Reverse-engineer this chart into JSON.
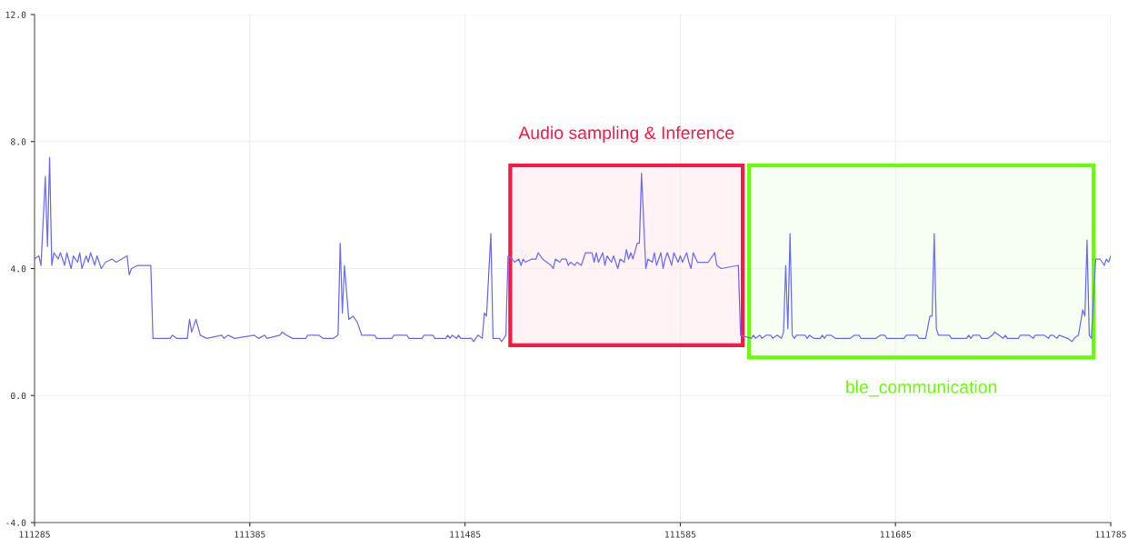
{
  "chart_data": {
    "type": "line",
    "x": [
      111285,
      111287,
      111288,
      111290,
      111291,
      111292,
      111293,
      111294,
      111296,
      111297,
      111299,
      111300,
      111302,
      111303,
      111305,
      111306,
      111307,
      111309,
      111310,
      111311,
      111313,
      111314,
      111316,
      111318,
      111321,
      111323,
      111328,
      111329,
      111330,
      111333,
      111339,
      111340,
      111348,
      111349,
      111351,
      111356,
      111357,
      111358,
      111360,
      111362,
      111365,
      111372,
      111373,
      111375,
      111378,
      111387,
      111389,
      111392,
      111393,
      111399,
      111400,
      111402,
      111405,
      111411,
      111412,
      111417,
      111419,
      111424,
      111426,
      111427,
      111428,
      111429,
      111431,
      111433,
      111435,
      111437,
      111443,
      111444,
      111451,
      111452,
      111458,
      111459,
      111465,
      111466,
      111470,
      111471,
      111476,
      111477,
      111478,
      111479,
      111481,
      111482,
      111483,
      111488,
      111489,
      111491,
      111493,
      111494,
      111495,
      111497,
      111498,
      111501,
      111502,
      111504,
      111505,
      111507,
      111508,
      111510,
      111511,
      111512,
      111513,
      111516,
      111518,
      111519,
      111521,
      111523,
      111525,
      111526,
      111527,
      111529,
      111530,
      111532,
      111533,
      111534,
      111536,
      111537,
      111539,
      111541,
      111544,
      111545,
      111546,
      111547,
      111549,
      111550,
      111551,
      111553,
      111554,
      111556,
      111557,
      111559,
      111560,
      111561,
      111562,
      111563,
      111565,
      111566,
      111567,
      111569,
      111570,
      111572,
      111573,
      111574,
      111576,
      111577,
      111578,
      111579,
      111581,
      111582,
      111584,
      111585,
      111586,
      111588,
      111589,
      111590,
      111591,
      111593,
      111598,
      111599,
      111601,
      111602,
      111604,
      111612,
      111613,
      111618,
      111619,
      111620,
      111622,
      111623,
      111625,
      111627,
      111628,
      111630,
      111632,
      111633,
      111634,
      111635,
      111636,
      111637,
      111638,
      111639,
      111643,
      111644,
      111645,
      111647,
      111650,
      111651,
      111652,
      111653,
      111655,
      111657,
      111664,
      111666,
      111668,
      111669,
      111676,
      111678,
      111680,
      111681,
      111683,
      111689,
      111690,
      111695,
      111696,
      111699,
      111701,
      111702,
      111703,
      111704,
      111705,
      111710,
      111711,
      111718,
      111719,
      111720,
      111721,
      111724,
      111725,
      111728,
      111730,
      111731,
      111733,
      111735,
      111736,
      111737,
      111742,
      111743,
      111747,
      111749,
      111750,
      111754,
      111756,
      111757,
      111758,
      111760,
      111761,
      111765,
      111767,
      111768,
      111770,
      111772,
      111773,
      111774,
      111775,
      111776,
      111778,
      111780,
      111782,
      111783,
      111784,
      111785
    ],
    "series": [
      {
        "color": "#6b6bff",
        "values": [
          4.3,
          4.4,
          4.1,
          6.9,
          4.7,
          7.5,
          4.1,
          4.5,
          4.3,
          4.5,
          4.1,
          4.5,
          4.0,
          4.4,
          4.2,
          4.5,
          4.0,
          4.4,
          4.2,
          4.5,
          4.1,
          4.4,
          4.0,
          4.2,
          4.3,
          4.2,
          4.4,
          3.8,
          4.0,
          4.1,
          4.1,
          1.8,
          1.8,
          1.9,
          1.8,
          1.8,
          2.4,
          2.0,
          2.4,
          1.9,
          1.8,
          1.9,
          1.8,
          1.9,
          1.8,
          1.9,
          1.8,
          1.9,
          1.8,
          1.9,
          2.0,
          1.9,
          1.8,
          1.8,
          1.9,
          1.9,
          1.8,
          1.8,
          1.9,
          4.8,
          2.6,
          4.1,
          2.4,
          2.5,
          2.3,
          1.9,
          1.9,
          1.8,
          1.8,
          1.9,
          1.9,
          1.8,
          1.8,
          1.9,
          1.9,
          1.8,
          1.8,
          1.9,
          1.8,
          1.9,
          1.8,
          1.9,
          1.8,
          1.8,
          1.7,
          1.9,
          1.8,
          2.6,
          2.5,
          5.1,
          1.8,
          1.8,
          1.7,
          1.9,
          4.4,
          4.3,
          4.2,
          4.3,
          4.1,
          4.3,
          4.2,
          4.3,
          4.3,
          4.5,
          4.3,
          4.2,
          4.1,
          4.0,
          4.3,
          4.2,
          4.3,
          4.3,
          4.1,
          4.2,
          4.1,
          4.2,
          4.1,
          4.5,
          4.5,
          4.2,
          4.5,
          4.2,
          4.5,
          4.1,
          4.4,
          4.2,
          4.4,
          4.0,
          4.3,
          4.2,
          4.6,
          4.3,
          4.5,
          4.3,
          4.8,
          4.8,
          7.0,
          4.0,
          4.3,
          4.2,
          4.5,
          4.1,
          4.5,
          4.0,
          4.3,
          4.5,
          4.1,
          4.5,
          4.2,
          4.4,
          4.2,
          4.5,
          4.2,
          4.0,
          4.5,
          4.2,
          4.2,
          4.3,
          4.5,
          4.1,
          4.0,
          4.1,
          1.9,
          1.8,
          1.9,
          1.8,
          1.9,
          1.8,
          1.9,
          1.9,
          1.8,
          1.9,
          1.8,
          2.0,
          4.1,
          2.1,
          5.1,
          1.9,
          1.8,
          1.9,
          1.9,
          1.8,
          1.9,
          1.8,
          1.8,
          1.9,
          1.8,
          1.9,
          1.9,
          1.8,
          1.8,
          1.9,
          1.9,
          1.8,
          1.8,
          1.9,
          1.9,
          1.8,
          1.8,
          1.8,
          1.9,
          1.9,
          1.8,
          1.8,
          2.5,
          2.5,
          5.1,
          2.1,
          1.9,
          1.9,
          1.8,
          1.8,
          1.9,
          1.8,
          1.9,
          1.9,
          1.8,
          1.8,
          1.9,
          2.0,
          1.9,
          1.8,
          1.9,
          1.8,
          1.8,
          1.9,
          1.9,
          1.8,
          1.9,
          1.9,
          1.8,
          1.9,
          1.9,
          1.8,
          1.9,
          1.8,
          1.7,
          1.8,
          1.9,
          2.7,
          2.5,
          4.9,
          1.9,
          1.8,
          4.3,
          4.3,
          4.1,
          4.3,
          4.2,
          4.4
        ]
      }
    ],
    "xlim": [
      111285,
      111785
    ],
    "xticks": [
      111285,
      111385,
      111485,
      111585,
      111685,
      111785
    ],
    "ylim": [
      -4,
      12
    ],
    "yticks": [
      {
        "value": -4,
        "label": "-4.0"
      },
      {
        "value": 0,
        "label": "0.0"
      },
      {
        "value": 4,
        "label": "4.0"
      },
      {
        "value": 8,
        "label": "8.0"
      },
      {
        "value": 12,
        "label": "12.0"
      }
    ],
    "bands": [
      {
        "axis": "x",
        "from": 111506,
        "to": 111614,
        "label": "Audio sampling & Inference",
        "color": "#ff1744"
      },
      {
        "axis": "x",
        "from": 111617,
        "to": 111777,
        "label": "ble_communication",
        "color": "#66ff00"
      }
    ],
    "grid": true,
    "marker": "none",
    "line_style": "solid"
  }
}
